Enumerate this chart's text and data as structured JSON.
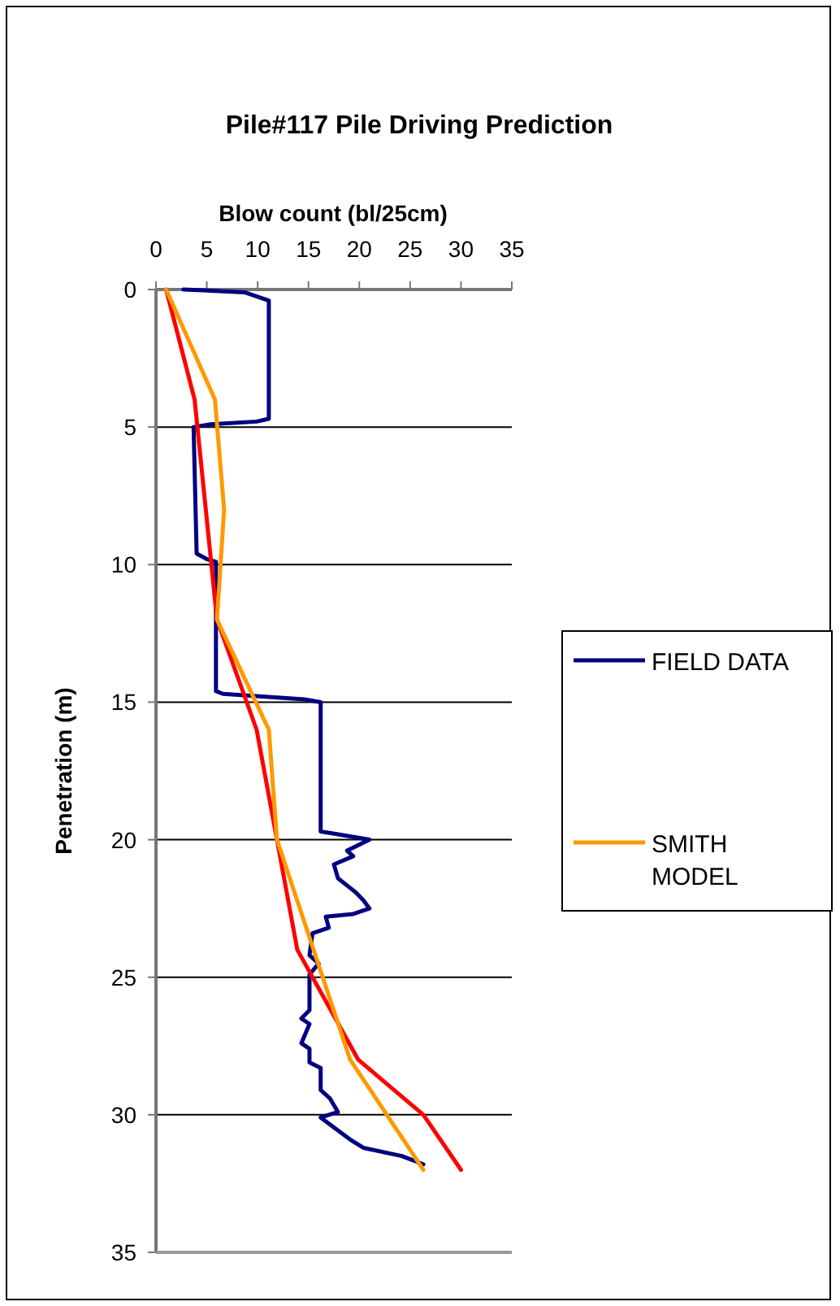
{
  "chart_data": {
    "type": "line",
    "title": "Pile#117 Pile Driving Prediction",
    "xlabel": "Blow count (bl/25cm)",
    "ylabel": "Penetration (m)",
    "xlim": [
      0,
      35
    ],
    "xticks": [
      0,
      5,
      10,
      15,
      20,
      25,
      30,
      35
    ],
    "ylim": [
      35,
      0
    ],
    "yticks": [
      0,
      5,
      10,
      15,
      20,
      25,
      30,
      35
    ],
    "grid": "y",
    "legend": "right",
    "marker": "none",
    "line_style": "solid",
    "series": [
      {
        "name": "FIELD DATA",
        "color": "#000080",
        "x": [
          2.7,
          8.7,
          11.1,
          11.1,
          9.9,
          5.4,
          3.7,
          4.0,
          5.0,
          5.9,
          5.9,
          6.6,
          14.6,
          16.2,
          16.2,
          17.8,
          21.0,
          18.8,
          19.4,
          17.5,
          17.9,
          19.6,
          20.4,
          21.0,
          19.4,
          16.7,
          17.0,
          15.4,
          15.1,
          16.0,
          15.1,
          15.1,
          14.3,
          15.1,
          14.3,
          15.1,
          15.1,
          16.2,
          16.2,
          17.1,
          17.9,
          16.2,
          19.1,
          20.4,
          24.2,
          26.3
        ],
        "values": [
          0,
          0.1,
          0.4,
          4.7,
          4.8,
          4.9,
          5.0,
          9.6,
          9.8,
          9.9,
          14.6,
          14.7,
          14.9,
          15.0,
          19.7,
          19.8,
          20.0,
          20.4,
          20.6,
          20.9,
          21.4,
          21.9,
          22.2,
          22.5,
          22.7,
          22.8,
          23.2,
          23.4,
          24.2,
          24.5,
          24.9,
          26.2,
          26.5,
          26.7,
          27.4,
          27.6,
          28.1,
          28.3,
          29.1,
          29.4,
          29.9,
          30.1,
          30.9,
          31.2,
          31.5,
          31.8
        ]
      },
      {
        "color": "#ff0000",
        "x": [
          1,
          3.8,
          6,
          9.9,
          13.9,
          19.9,
          26.3,
          30
        ],
        "values": [
          0,
          4,
          12,
          16,
          24,
          28,
          30,
          32
        ]
      },
      {
        "name": "SMITH MODEL",
        "color": "#ff9900",
        "x": [
          1,
          5.8,
          6.7,
          6,
          11.1,
          11.9,
          19.1,
          26.3
        ],
        "values": [
          0,
          4,
          8,
          12,
          16,
          20,
          28,
          32
        ]
      }
    ]
  }
}
